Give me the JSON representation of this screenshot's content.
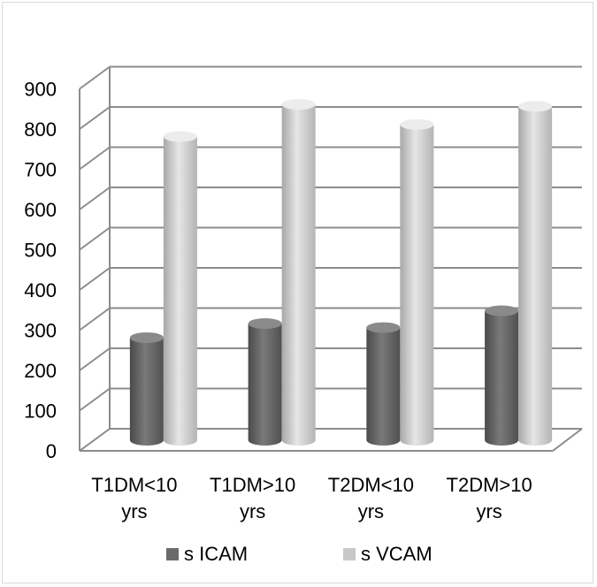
{
  "chart_data": {
    "type": "bar",
    "style": "3d-cylinder",
    "categories": [
      [
        "T1DM<10",
        "yrs"
      ],
      [
        "T1DM>10",
        "yrs"
      ],
      [
        "T2DM<10",
        "yrs"
      ],
      [
        "T2DM>10",
        "yrs"
      ]
    ],
    "series": [
      {
        "name": "s ICAM",
        "values": [
          255,
          290,
          280,
          322
        ],
        "color": "#6b6b6b"
      },
      {
        "name": "s VCAM",
        "values": [
          755,
          835,
          785,
          830
        ],
        "color": "#c8c8c8"
      }
    ],
    "yticks": [
      0,
      100,
      200,
      300,
      400,
      500,
      600,
      700,
      800,
      900
    ],
    "ylim": [
      0,
      900
    ],
    "grid": true,
    "legend_position": "bottom"
  }
}
